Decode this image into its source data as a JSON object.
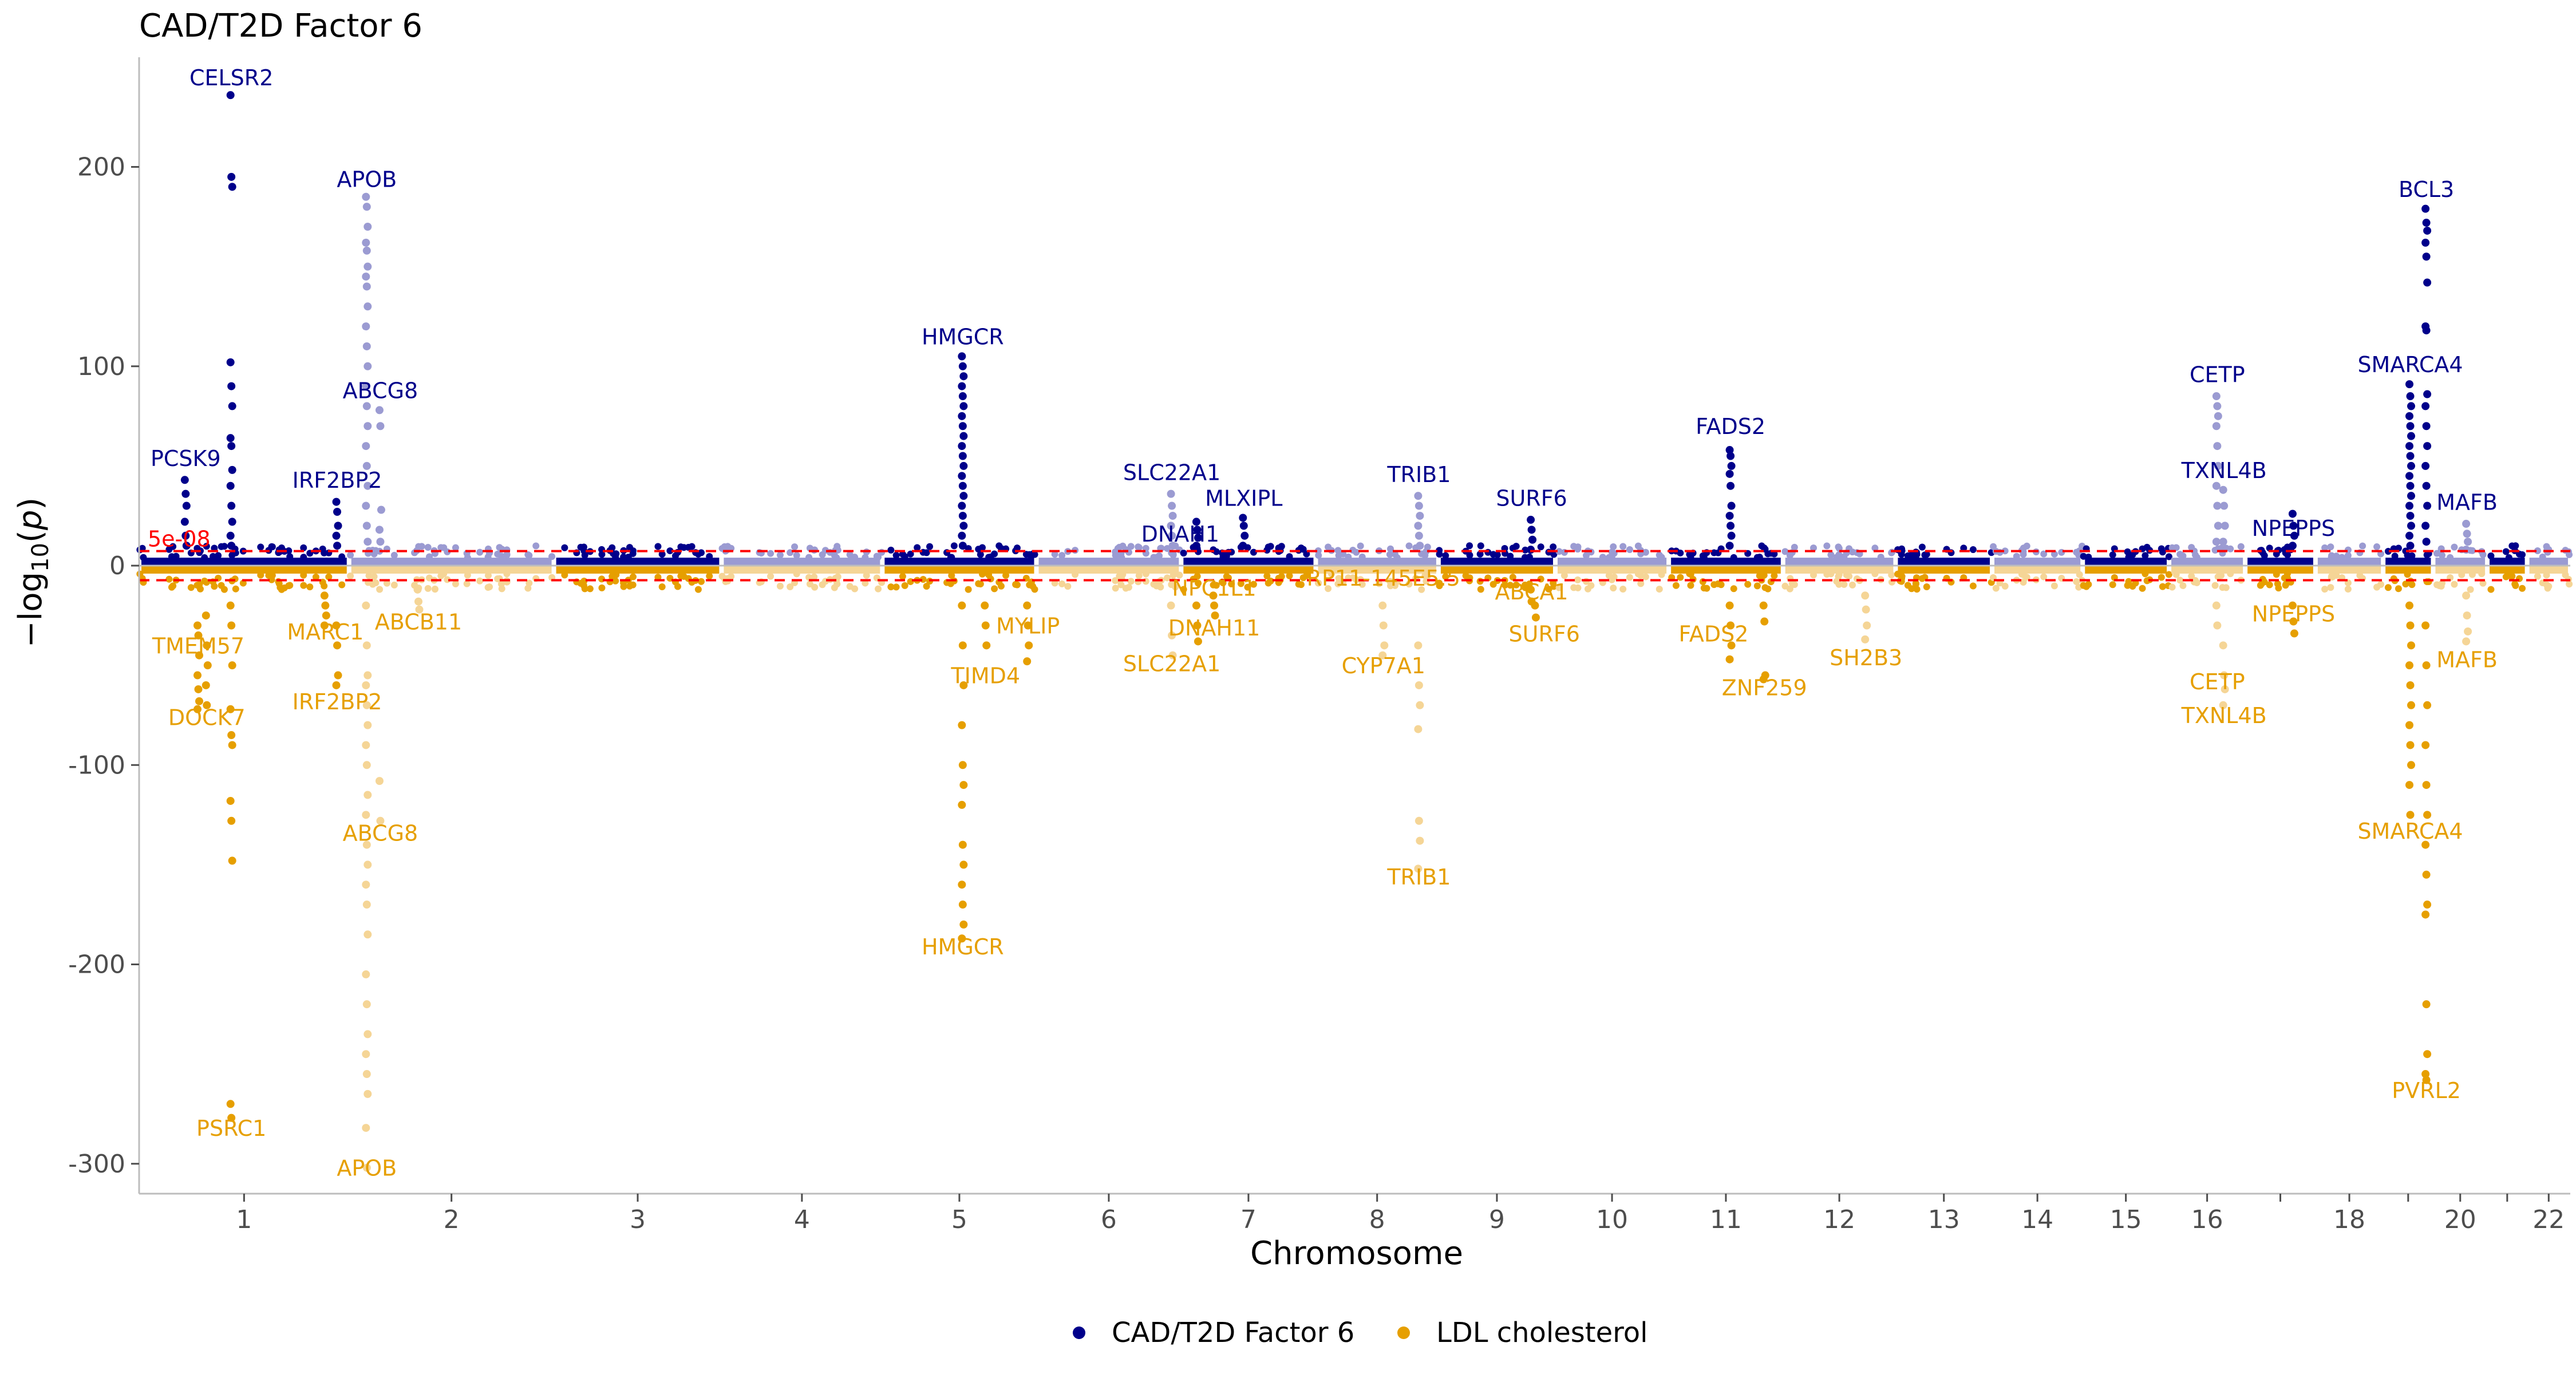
{
  "chart_data": {
    "type": "scatter",
    "title": "CAD/T2D Factor 6",
    "xlabel": "Chromosome",
    "ylabel": "−log10(p)",
    "ylim": [
      -315,
      255
    ],
    "y_ticks": [
      {
        "value": 200,
        "label": "200"
      },
      {
        "value": 100,
        "label": "100"
      },
      {
        "value": 0,
        "label": "0"
      },
      {
        "value": -100,
        "label": "-100"
      },
      {
        "value": -200,
        "label": "-200"
      },
      {
        "value": -300,
        "label": "-300"
      }
    ],
    "threshold": {
      "label": "5e-08",
      "value": 7.3
    },
    "grid": false,
    "legend_position": "bottom",
    "legend": [
      {
        "label": "CAD/T2D Factor 6",
        "color": "#00008b"
      },
      {
        "label": "LDL cholesterol",
        "color": "#e69f00"
      }
    ],
    "colors": {
      "factor_dark": "#00008b",
      "factor_light": "#9b9bd2",
      "ldl_dark": "#e69f00",
      "ldl_light": "#f5d596",
      "threshold": "#ff0000"
    },
    "chromosomes": [
      {
        "chr": 1,
        "label": "1",
        "start": 0,
        "end": 248
      },
      {
        "chr": 2,
        "label": "2",
        "start": 248,
        "end": 490
      },
      {
        "chr": 3,
        "label": "3",
        "start": 490,
        "end": 688
      },
      {
        "chr": 4,
        "label": "4",
        "start": 688,
        "end": 878
      },
      {
        "chr": 5,
        "label": "5",
        "start": 878,
        "end": 1060
      },
      {
        "chr": 6,
        "label": "6",
        "start": 1060,
        "end": 1231
      },
      {
        "chr": 7,
        "label": "7",
        "start": 1231,
        "end": 1390
      },
      {
        "chr": 8,
        "label": "8",
        "start": 1390,
        "end": 1535
      },
      {
        "chr": 9,
        "label": "9",
        "start": 1535,
        "end": 1673
      },
      {
        "chr": 10,
        "label": "10",
        "start": 1673,
        "end": 1807
      },
      {
        "chr": 11,
        "label": "11",
        "start": 1807,
        "end": 1942
      },
      {
        "chr": 12,
        "label": "12",
        "start": 1942,
        "end": 2075
      },
      {
        "chr": 13,
        "label": "13",
        "start": 2075,
        "end": 2189
      },
      {
        "chr": 14,
        "label": "14",
        "start": 2189,
        "end": 2296
      },
      {
        "chr": 15,
        "label": "15",
        "start": 2296,
        "end": 2398
      },
      {
        "chr": 16,
        "label": "16",
        "start": 2398,
        "end": 2488
      },
      {
        "chr": 17,
        "label": "",
        "start": 2488,
        "end": 2571
      },
      {
        "chr": 18,
        "label": "18",
        "start": 2571,
        "end": 2651
      },
      {
        "chr": 19,
        "label": "",
        "start": 2651,
        "end": 2710
      },
      {
        "chr": 20,
        "label": "20",
        "start": 2710,
        "end": 2774
      },
      {
        "chr": 21,
        "label": "",
        "start": 2774,
        "end": 2821
      },
      {
        "chr": 22,
        "label": "22",
        "start": 2821,
        "end": 2872
      }
    ],
    "peaks": [
      {
        "gene": "CELSR2",
        "pos": 109,
        "values": [
          236,
          195,
          190,
          102,
          90,
          80,
          64,
          60,
          48,
          40,
          30,
          22,
          15,
          10
        ]
      },
      {
        "gene": "PCSK9",
        "pos": 55,
        "values": [
          43,
          36,
          30,
          22,
          15,
          10
        ]
      },
      {
        "gene": "IRF2BP2",
        "pos": 234,
        "values": [
          32,
          27,
          20,
          15,
          10
        ]
      },
      {
        "gene": "APOB",
        "pos": 269,
        "values": [
          185,
          180,
          170,
          162,
          158,
          150,
          145,
          140,
          130,
          120,
          110,
          100,
          90,
          80,
          70,
          60,
          50,
          40,
          30,
          20,
          12
        ]
      },
      {
        "gene": "ABCG8",
        "pos": 285,
        "values": [
          78,
          70,
          28,
          18,
          12
        ]
      },
      {
        "gene": "HMGCR",
        "pos": 973,
        "values": [
          105,
          100,
          95,
          90,
          85,
          80,
          75,
          70,
          65,
          60,
          55,
          50,
          45,
          40,
          35,
          30,
          25,
          20,
          15,
          10
        ]
      },
      {
        "gene": "SLC22A1",
        "pos": 1220,
        "values": [
          36,
          30,
          25,
          20,
          15,
          10
        ]
      },
      {
        "gene": "DNAH11",
        "pos": 1250,
        "values": [
          22,
          18,
          14,
          10
        ]
      },
      {
        "gene": "MLXIPL",
        "pos": 1305,
        "values": [
          24,
          20,
          15,
          10
        ]
      },
      {
        "gene": "TRIB1",
        "pos": 1512,
        "values": [
          35,
          30,
          25,
          20,
          15,
          10
        ]
      },
      {
        "gene": "SURF6",
        "pos": 1645,
        "values": [
          23,
          18,
          13,
          8
        ]
      },
      {
        "gene": "FADS2",
        "pos": 1880,
        "values": [
          58,
          55,
          50,
          46,
          40,
          30,
          25,
          20,
          15,
          10
        ]
      },
      {
        "gene": "CETP",
        "pos": 2455,
        "values": [
          85,
          80,
          75,
          70,
          60,
          50,
          40,
          30,
          20,
          12
        ]
      },
      {
        "gene": "TXNL4B",
        "pos": 2463,
        "values": [
          38,
          30,
          20,
          12
        ]
      },
      {
        "gene": "NPEPPS",
        "pos": 2545,
        "values": [
          26,
          20,
          15,
          10
        ]
      },
      {
        "gene": "SMARCA4",
        "pos": 2683,
        "values": [
          91,
          85,
          80,
          75,
          70,
          65,
          60,
          55,
          50,
          45,
          40,
          35,
          30,
          25,
          20,
          15,
          10
        ]
      },
      {
        "gene": "BCL3",
        "pos": 2702,
        "values": [
          179,
          172,
          168,
          162,
          155,
          142,
          120,
          118,
          86,
          80,
          70,
          60,
          50,
          40,
          30,
          20,
          12
        ]
      },
      {
        "gene": "MAFB",
        "pos": 2750,
        "values": [
          21,
          16,
          12,
          8
        ]
      }
    ],
    "ldl_peaks": [
      {
        "gene": "TMEM57",
        "pos": 70,
        "values": [
          -30,
          -35,
          -45,
          -55,
          -62,
          -68,
          -72
        ]
      },
      {
        "gene": "DOCK7",
        "pos": 80,
        "values": [
          -25,
          -40,
          -50,
          -60,
          -70
        ]
      },
      {
        "gene": "PSRC1",
        "pos": 109,
        "values": [
          -20,
          -30,
          -50,
          -72,
          -85,
          -90,
          -118,
          -128,
          -148,
          -270,
          -277
        ]
      },
      {
        "gene": "MARC1",
        "pos": 220,
        "values": [
          -15,
          -20,
          -25,
          -30
        ]
      },
      {
        "gene": "IRF2BP2",
        "pos": 234,
        "values": [
          -30,
          -40,
          -55,
          -60
        ]
      },
      {
        "gene": "APOB",
        "pos": 269,
        "values": [
          -20,
          -40,
          -55,
          -60,
          -70,
          -80,
          -90,
          -100,
          -115,
          -125,
          -140,
          -150,
          -160,
          -170,
          -185,
          -205,
          -220,
          -235,
          -245,
          -255,
          -265,
          -282,
          -302
        ]
      },
      {
        "gene": "ABCG8",
        "pos": 285,
        "values": [
          -108,
          -128
        ]
      },
      {
        "gene": "ABCB11",
        "pos": 330,
        "values": [
          -12,
          -18,
          -22
        ]
      },
      {
        "gene": "TIMD4",
        "pos": 1000,
        "values": [
          -20,
          -30,
          -40
        ]
      },
      {
        "gene": "HMGCR",
        "pos": 973,
        "values": [
          -20,
          -40,
          -60,
          -80,
          -100,
          -110,
          -120,
          -140,
          -150,
          -160,
          -170,
          -180,
          -187
        ]
      },
      {
        "gene": "MYLIP",
        "pos": 1050,
        "values": [
          -20,
          -30,
          -40,
          -48
        ]
      },
      {
        "gene": "SLC22A1",
        "pos": 1220,
        "values": [
          -20,
          -35,
          -45
        ]
      },
      {
        "gene": "NPC1L1",
        "pos": 1270,
        "values": [
          -15,
          -20,
          -25
        ]
      },
      {
        "gene": "DNAH11",
        "pos": 1250,
        "values": [
          -20,
          -30,
          -38
        ]
      },
      {
        "gene": "CYP7A1",
        "pos": 1470,
        "values": [
          -20,
          -30,
          -40,
          -45
        ]
      },
      {
        "gene": "TRIB1",
        "pos": 1512,
        "values": [
          -40,
          -60,
          -70,
          -82,
          -128,
          -138,
          -152
        ]
      },
      {
        "gene": "ABCA1",
        "pos": 1645,
        "values": [
          -12,
          -18
        ]
      },
      {
        "gene": "SURF6",
        "pos": 1650,
        "values": [
          -20,
          -26
        ]
      },
      {
        "gene": "FADS2",
        "pos": 1880,
        "values": [
          -20,
          -30,
          -40,
          -47
        ]
      },
      {
        "gene": "ZNF259",
        "pos": 1920,
        "values": [
          -20,
          -28,
          -55,
          -57
        ]
      },
      {
        "gene": "SH2B3",
        "pos": 2040,
        "values": [
          -15,
          -22,
          -30,
          -37
        ]
      },
      {
        "gene": "CETP",
        "pos": 2455,
        "values": [
          -20,
          -30
        ]
      },
      {
        "gene": "TXNL4B",
        "pos": 2463,
        "values": [
          -40,
          -55,
          -62,
          -70
        ]
      },
      {
        "gene": "NPEPPS",
        "pos": 2545,
        "values": [
          -20,
          -28,
          -34
        ]
      },
      {
        "gene": "SMARCA4",
        "pos": 2683,
        "values": [
          -20,
          -30,
          -40,
          -50,
          -60,
          -70,
          -80,
          -90,
          -100,
          -110,
          -125
        ]
      },
      {
        "gene": "PVRL2",
        "pos": 2702,
        "values": [
          -30,
          -50,
          -70,
          -90,
          -110,
          -125,
          -140,
          -155,
          -170,
          -175,
          -220,
          -245,
          -255,
          -258
        ]
      },
      {
        "gene": "MAFB",
        "pos": 2750,
        "values": [
          -15,
          -25,
          -33,
          -38
        ]
      }
    ],
    "annotations_up": [
      {
        "text": "CELSR2",
        "pos": 109,
        "y": 241
      },
      {
        "text": "APOB",
        "pos": 269,
        "y": 190
      },
      {
        "text": "ABCG8",
        "pos": 285,
        "y": 84
      },
      {
        "text": "PCSK9",
        "pos": 55,
        "y": 50
      },
      {
        "text": "IRF2BP2",
        "pos": 234,
        "y": 39
      },
      {
        "text": "HMGCR",
        "pos": 973,
        "y": 111
      },
      {
        "text": "SLC22A1",
        "pos": 1220,
        "y": 43
      },
      {
        "text": "DNAH1",
        "pos": 1230,
        "y": 12
      },
      {
        "text": "MLXIPL",
        "pos": 1305,
        "y": 30
      },
      {
        "text": "TRIB1",
        "pos": 1512,
        "y": 42
      },
      {
        "text": "SURF6",
        "pos": 1645,
        "y": 30
      },
      {
        "text": "FADS2",
        "pos": 1880,
        "y": 66
      },
      {
        "text": "CETP",
        "pos": 2455,
        "y": 92
      },
      {
        "text": "TXNL4B",
        "pos": 2463,
        "y": 44
      },
      {
        "text": "SMARCA4",
        "pos": 2683,
        "y": 97
      },
      {
        "text": "NPEPPS",
        "pos": 2545,
        "y": 15
      },
      {
        "text": "BCL3",
        "pos": 2702,
        "y": 185
      },
      {
        "text": "MAFB",
        "pos": 2750,
        "y": 28
      }
    ],
    "annotations_down": [
      {
        "text": "TMEM57",
        "pos": 70,
        "y": -44
      },
      {
        "text": "DOCK7",
        "pos": 80,
        "y": -80
      },
      {
        "text": "MARC1",
        "pos": 220,
        "y": -37
      },
      {
        "text": "IRF2BP2",
        "pos": 234,
        "y": -72
      },
      {
        "text": "ABCB11",
        "pos": 330,
        "y": -32
      },
      {
        "text": "ABCG8",
        "pos": 285,
        "y": -138
      },
      {
        "text": "PSRC1",
        "pos": 109,
        "y": -286
      },
      {
        "text": "APOB",
        "pos": 269,
        "y": -306
      },
      {
        "text": "MYLIP",
        "pos": 1050,
        "y": -34
      },
      {
        "text": "TIMD4",
        "pos": 1000,
        "y": -59
      },
      {
        "text": "SLC22A1",
        "pos": 1220,
        "y": -53
      },
      {
        "text": "HMGCR",
        "pos": 973,
        "y": -195
      },
      {
        "text": "NPC1L1",
        "pos": 1270,
        "y": -15
      },
      {
        "text": "DNAH11",
        "pos": 1270,
        "y": -35
      },
      {
        "text": "RP11-145E5.5",
        "pos": 1470,
        "y": -10
      },
      {
        "text": "CYP7A1",
        "pos": 1470,
        "y": -54
      },
      {
        "text": "TRIB1",
        "pos": 1512,
        "y": -160
      },
      {
        "text": "ABCA1",
        "pos": 1645,
        "y": -17
      },
      {
        "text": "SURF6",
        "pos": 1660,
        "y": -38
      },
      {
        "text": "FADS2",
        "pos": 1860,
        "y": -38
      },
      {
        "text": "ZNF259",
        "pos": 1920,
        "y": -65
      },
      {
        "text": "SH2B3",
        "pos": 2040,
        "y": -50
      },
      {
        "text": "CETP",
        "pos": 2455,
        "y": -62
      },
      {
        "text": "TXNL4B",
        "pos": 2463,
        "y": -79
      },
      {
        "text": "NPEPPS",
        "pos": 2545,
        "y": -28
      },
      {
        "text": "SMARCA4",
        "pos": 2683,
        "y": -137
      },
      {
        "text": "PVRL2",
        "pos": 2702,
        "y": -267
      },
      {
        "text": "MAFB",
        "pos": 2750,
        "y": -51
      }
    ]
  }
}
